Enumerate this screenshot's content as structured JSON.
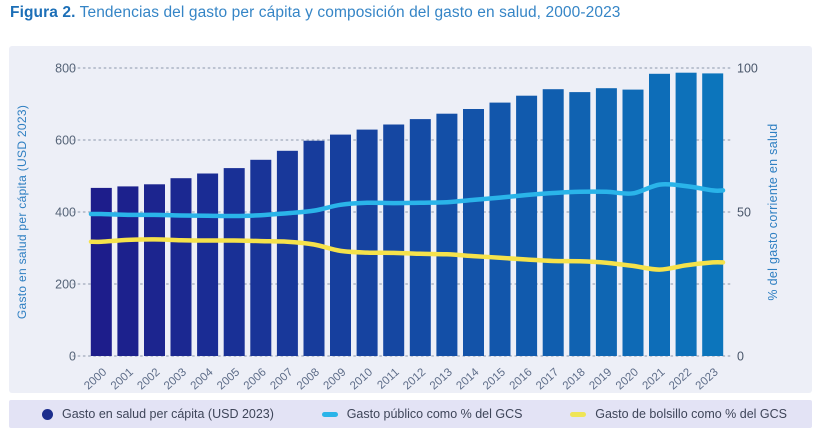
{
  "title": {
    "prefix": "Figura 2.",
    "main": "Tendencias del gasto per cápita y composición del gasto en salud, 2000-2023"
  },
  "colors": {
    "panel_bg": "#edeff7",
    "legend_bg": "#e3e3f5",
    "grid": "#9fa9ba",
    "bar_start": "#1d1d8b",
    "bar_end": "#0c75bc",
    "line_public": "#2ab4e9",
    "line_oop": "#f5e24b",
    "axis_title": "#2e7fc2",
    "tick_label_left": "#566478",
    "tick_label_right": "#49566a",
    "x_label": "#5d6c88",
    "legend_circle": "#1c2d8d",
    "legend_dash_public": "#2ab4e9",
    "legend_dash_oop": "#efe556"
  },
  "chart_data": {
    "type": "bar",
    "title": "",
    "categories": [
      "2000",
      "2001",
      "2002",
      "2003",
      "2004",
      "2005",
      "2006",
      "2007",
      "2008",
      "2009",
      "2010",
      "2011",
      "2012",
      "2013",
      "2014",
      "2015",
      "2016",
      "2017",
      "2018",
      "2019",
      "2020",
      "2021",
      "2022",
      "2023"
    ],
    "series": [
      {
        "name": "Gasto en salud per cápita (USD 2023)",
        "type": "bar",
        "axis": "left",
        "values": [
          467,
          471,
          477,
          494,
          507,
          522,
          545,
          570,
          598,
          615,
          629,
          643,
          658,
          673,
          686,
          704,
          723,
          741,
          733,
          744,
          740,
          784,
          787,
          785
        ]
      },
      {
        "name": "Gasto público como % del GCS",
        "type": "line",
        "axis": "right",
        "values": [
          49.3,
          49.0,
          49.0,
          48.8,
          48.7,
          48.6,
          48.9,
          49.6,
          50.5,
          52.5,
          53.2,
          53.1,
          53.2,
          53.4,
          54.2,
          55.0,
          55.9,
          56.6,
          57.0,
          57.0,
          56.5,
          59.5,
          59.0,
          57.5
        ]
      },
      {
        "name": "Gasto de bolsillo como % del GCS",
        "type": "line",
        "axis": "right",
        "values": [
          39.7,
          40.3,
          40.5,
          40.2,
          40.1,
          40.1,
          39.9,
          39.7,
          38.7,
          36.5,
          35.9,
          35.8,
          35.5,
          35.3,
          34.7,
          34.1,
          33.5,
          33.0,
          32.9,
          32.4,
          31.3,
          30.0,
          31.5,
          32.5
        ]
      }
    ],
    "left_axis": {
      "label": "Gasto en salud per cápita (USD 2023)",
      "ticks": [
        0,
        200,
        400,
        600,
        800
      ],
      "max": 800
    },
    "right_axis": {
      "label": "% del gasto corriente en salud",
      "ticks": [
        0,
        50,
        100
      ],
      "max": 100
    },
    "grid": "horizontal-dotted",
    "legend_position": "bottom"
  },
  "legend": {
    "items": [
      {
        "label": "Gasto en salud per cápita (USD 2023)",
        "shape": "circle",
        "color": "#1c2d8d"
      },
      {
        "label": "Gasto público como % del GCS",
        "shape": "dash",
        "color": "#2ab4e9"
      },
      {
        "label": "Gasto de bolsillo como % del GCS",
        "shape": "dash",
        "color": "#efe556"
      }
    ]
  }
}
